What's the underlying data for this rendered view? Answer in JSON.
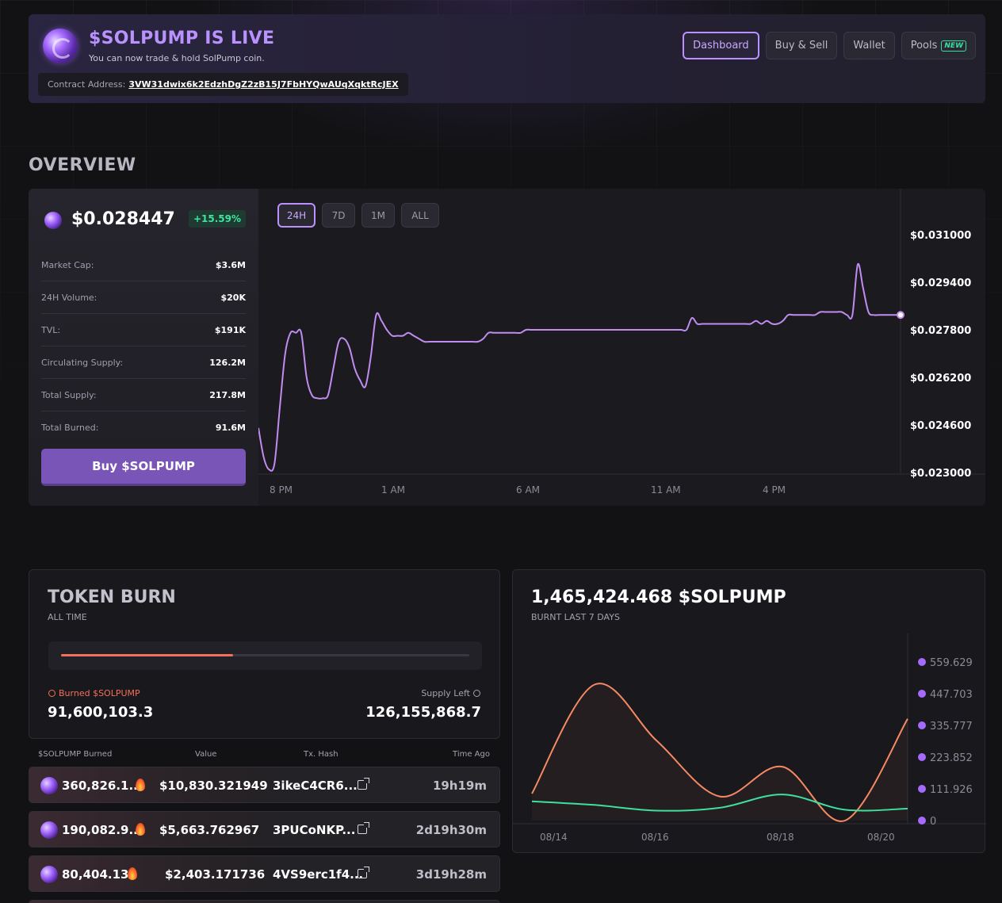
{
  "header": {
    "title": "$SOLPUMP IS LIVE",
    "subtitle": "You can now trade & hold SolPump coin.",
    "contract_label": "Contract Address:",
    "contract_address": "3VW31dwix6k2EdzhDgZ2zB15J7FbHYQwAUqXqktRcJEX",
    "nav": [
      {
        "label": "Dashboard",
        "active": true
      },
      {
        "label": "Buy & Sell"
      },
      {
        "label": "Wallet"
      },
      {
        "label": "Pools",
        "badge": "NEW"
      }
    ]
  },
  "overview": {
    "title": "OVERVIEW",
    "price": "$0.028447",
    "change": "+15.59%",
    "stats": [
      {
        "label": "Market Cap:",
        "value": "$3.6M"
      },
      {
        "label": "24H Volume:",
        "value": "$20K"
      },
      {
        "label": "TVL:",
        "value": "$191K"
      },
      {
        "label": "Circulating Supply:",
        "value": "126.2M"
      },
      {
        "label": "Total Supply:",
        "value": "217.8M"
      },
      {
        "label": "Total Burned:",
        "value": "91.6M"
      }
    ],
    "buy_button": "Buy $SOLPUMP",
    "ranges": [
      "24H",
      "7D",
      "1M",
      "ALL"
    ],
    "active_range": "24H"
  },
  "colors": {
    "accent": "#b992ff",
    "price_line": "#c18cf0",
    "burn_line": "#f58a62",
    "supply_line": "#3ee0a0",
    "positive": "#3de59f"
  },
  "chart_data": [
    {
      "type": "line",
      "x_ticks": [
        "8 PM",
        "1 AM",
        "6 AM",
        "11 AM",
        "4 PM"
      ],
      "y_ticks": [
        "$0.031000",
        "$0.029400",
        "$0.027800",
        "$0.026200",
        "$0.024600",
        "$0.023000"
      ],
      "ylim": [
        0.023,
        0.031
      ],
      "x": [
        0,
        1,
        2,
        3,
        4,
        5,
        6,
        7,
        8,
        9,
        10,
        11,
        12,
        13,
        14,
        15,
        16,
        17,
        18,
        19,
        20,
        21,
        22,
        23,
        24,
        25,
        26,
        27,
        28,
        29,
        30,
        31,
        32,
        33,
        34,
        35,
        36,
        37,
        38,
        39,
        40,
        41,
        42,
        43,
        44,
        45,
        46,
        47,
        48,
        49,
        50,
        51,
        52,
        53,
        54,
        55,
        56,
        57,
        58,
        59,
        60,
        61,
        62,
        63,
        64,
        65,
        66,
        67,
        68,
        69,
        70,
        71,
        72,
        73,
        74,
        75,
        76,
        77,
        78,
        79,
        80,
        81,
        82,
        83,
        84,
        85,
        86,
        87,
        88,
        89,
        90,
        91,
        92,
        93,
        94,
        95,
        96,
        97,
        98,
        99,
        100,
        101,
        102,
        103,
        104,
        105,
        106,
        107,
        108,
        109,
        110,
        111,
        112,
        113,
        114,
        115,
        116,
        117,
        118,
        119,
        120
      ],
      "series": [
        {
          "values": [
            0.0245,
            0.0235,
            0.0231,
            0.0233,
            0.0252,
            0.027,
            0.0277,
            0.0277,
            0.0277,
            0.0262,
            0.0256,
            0.0255,
            0.0255,
            0.0256,
            0.0265,
            0.0274,
            0.0275,
            0.0272,
            0.0265,
            0.0261,
            0.0259,
            0.0269,
            0.0283,
            0.0281,
            0.0278,
            0.0276,
            0.0276,
            0.0276,
            0.0277,
            0.0276,
            0.0275,
            0.0274,
            0.0274,
            0.0274,
            0.0274,
            0.0274,
            0.0274,
            0.0274,
            0.0274,
            0.0274,
            0.0274,
            0.0274,
            0.0275,
            0.0277,
            0.0277,
            0.0277,
            0.0277,
            0.0277,
            0.0277,
            0.0277,
            0.0278,
            0.0278,
            0.0278,
            0.0278,
            0.0278,
            0.0278,
            0.0278,
            0.0278,
            0.0278,
            0.0278,
            0.0278,
            0.0278,
            0.0278,
            0.0278,
            0.0278,
            0.0278,
            0.0278,
            0.0278,
            0.0278,
            0.0278,
            0.0278,
            0.0278,
            0.0278,
            0.0278,
            0.0278,
            0.0278,
            0.0278,
            0.0278,
            0.0278,
            0.0278,
            0.0278,
            0.0282,
            0.028,
            0.028,
            0.028,
            0.028,
            0.028,
            0.028,
            0.028,
            0.028,
            0.028,
            0.028,
            0.028,
            0.0281,
            0.028,
            0.0281,
            0.028,
            0.028,
            0.0281,
            0.0283,
            0.0283,
            0.0283,
            0.0283,
            0.0283,
            0.0283,
            0.0284,
            0.0284,
            0.0284,
            0.0284,
            0.0284,
            0.0283,
            0.0283,
            0.03,
            0.0292,
            0.0284,
            0.0283,
            0.0283,
            0.0283,
            0.0283,
            0.0283,
            0.0283
          ]
        }
      ]
    },
    {
      "type": "line",
      "x_ticks": [
        "08/14",
        "08/16",
        "08/18",
        "08/20"
      ],
      "y_ticks": [
        "559.629",
        "447.703",
        "335.777",
        "223.852",
        "111.926",
        "0"
      ],
      "ylim": [
        0,
        559.629
      ],
      "x": [
        0,
        1,
        2,
        3,
        4,
        5,
        6,
        7,
        8
      ],
      "series": [
        {
          "values": [
            95,
            480,
            280,
            85,
            190,
            0,
            359,
            0,
            0
          ],
          "color_ref": "burn_line"
        },
        {
          "values": [
            68,
            55,
            35,
            45,
            92,
            38,
            42,
            0,
            0
          ],
          "color_ref": "supply_line"
        }
      ]
    }
  ],
  "token_burn": {
    "title": "TOKEN BURN",
    "subtitle": "ALL TIME",
    "progress": 0.4205,
    "burned_label": "Burned $SOLPUMP",
    "burned_value": "91,600,103.3",
    "supply_label": "Supply Left",
    "supply_value": "126,155,868.7"
  },
  "burn_table": {
    "headers": [
      "$SOLPUMP Burned",
      "Value",
      "Tx. Hash",
      "Time Ago"
    ],
    "rows": [
      {
        "amount": "360,826.1...",
        "value": "$10,830.321949",
        "hash": "3ikeC4CR6...",
        "time": "19h19m"
      },
      {
        "amount": "190,082.9...",
        "value": "$5,663.762967",
        "hash": "3PUCoNKP...",
        "time": "2d19h30m"
      },
      {
        "amount": "80,404.131",
        "value": "$2,403.171736",
        "hash": "4VS9erc1f4...",
        "time": "3d19h28m"
      }
    ]
  },
  "burnt_chart": {
    "title": "1,465,424.468 $SOLPUMP",
    "subtitle": "BURNT LAST 7 DAYS"
  }
}
